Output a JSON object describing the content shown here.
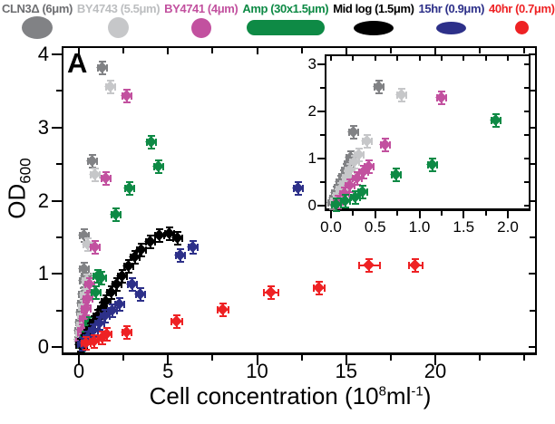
{
  "panel_label": "A",
  "legend": {
    "entries": [
      {
        "label": "CLN3Δ (6μm)",
        "color": "#6d6e71",
        "marker_color": "#818285",
        "marker": "ellipse",
        "marker_w": 34,
        "marker_h": 25
      },
      {
        "label": "BY4743 (5.5μm)",
        "color": "#bcbec0",
        "marker_color": "#c6c7c9",
        "marker": "ellipse",
        "marker_w": 23,
        "marker_h": 23
      },
      {
        "label": "BY4741 (4μm)",
        "color": "#c2519f",
        "marker_color": "#c2519f",
        "marker": "circle",
        "marker_w": 22,
        "marker_h": 22
      },
      {
        "label": "Amp (30x1.5μm)",
        "color": "#0e8a45",
        "marker_color": "#0e8a45",
        "marker": "rod",
        "marker_w": 86,
        "marker_h": 17
      },
      {
        "label": "Mid log (1.5μm)",
        "color": "#000000",
        "marker_color": "#000000",
        "marker": "ellipse",
        "marker_w": 44,
        "marker_h": 16
      },
      {
        "label": "15hr (0.9μm)",
        "color": "#2d3089",
        "marker_color": "#2d3089",
        "marker": "ellipse",
        "marker_w": 33,
        "marker_h": 14
      },
      {
        "label": "40hr (0.7μm)",
        "color": "#ee2224",
        "marker_color": "#ee2224",
        "marker": "circle",
        "marker_w": 15,
        "marker_h": 15
      }
    ]
  },
  "axes": {
    "x_title": {
      "prefix": "Cell concentration (10",
      "sup": "8",
      "mid": "ml",
      "sup2": "-1",
      "suffix": ")"
    },
    "y_title": {
      "main": "OD",
      "sub": "600"
    }
  },
  "chart_data": [
    {
      "type": "scatter",
      "name": "main-plot",
      "xlabel": "Cell concentration (10^8 ml^-1)",
      "ylabel": "OD600",
      "xlim": [
        -1,
        25.7
      ],
      "ylim": [
        -0.11,
        4.05
      ],
      "grid": false,
      "x_ticks": {
        "major": [
          0,
          5,
          10,
          15,
          20
        ],
        "labels": [
          "0",
          "5",
          "10",
          "15",
          "20"
        ],
        "minor": [
          2.5,
          7.5,
          12.5,
          17.5,
          22.5,
          25
        ]
      },
      "y_ticks": {
        "major": [
          0,
          1,
          2,
          3,
          4
        ],
        "labels": [
          "0",
          "1",
          "2",
          "3",
          "4"
        ],
        "minor": [
          0.5,
          1.5,
          2.5,
          3.5
        ]
      },
      "series": [
        {
          "name": "CLN3Δ (6μm)",
          "color": "#818285",
          "points": [
            [
              0.03,
              0.1
            ],
            [
              0.06,
              0.22
            ],
            [
              0.09,
              0.33
            ],
            [
              0.13,
              0.47
            ],
            [
              0.18,
              0.6
            ],
            [
              0.24,
              0.72
            ],
            [
              0.3,
              0.9
            ],
            [
              0.31,
              1.07
            ],
            [
              0.41,
              0.97
            ],
            [
              0.33,
              1.52
            ],
            [
              0.76,
              2.54
            ],
            [
              1.3,
              3.82
            ]
          ]
        },
        {
          "name": "BY4743 (5.5μm)",
          "color": "#c6c7c9",
          "points": [
            [
              0.05,
              0.08
            ],
            [
              0.09,
              0.18
            ],
            [
              0.14,
              0.3
            ],
            [
              0.19,
              0.42
            ],
            [
              0.26,
              0.55
            ],
            [
              0.34,
              0.7
            ],
            [
              0.45,
              0.9
            ],
            [
              0.5,
              1.4
            ],
            [
              0.92,
              2.35
            ],
            [
              1.8,
              3.56
            ]
          ]
        },
        {
          "name": "BY4741 (4μm)",
          "color": "#c2519f",
          "points": [
            [
              0.1,
              0.08
            ],
            [
              0.2,
              0.22
            ],
            [
              0.3,
              0.38
            ],
            [
              0.4,
              0.52
            ],
            [
              0.5,
              0.66
            ],
            [
              0.62,
              0.85
            ],
            [
              0.9,
              1.36
            ],
            [
              1.53,
              2.3
            ],
            [
              2.7,
              3.43
            ]
          ]
        },
        {
          "name": "Amp (30x1.5μm)",
          "color": "#0e8a45",
          "points": [
            [
              0.15,
              0.03
            ],
            [
              0.38,
              0.13
            ],
            [
              0.62,
              0.32
            ],
            [
              0.97,
              0.74
            ],
            [
              1.07,
              0.97
            ],
            [
              1.27,
              0.94
            ],
            [
              2.09,
              1.81
            ],
            [
              2.87,
              2.17
            ],
            [
              4.07,
              2.8
            ],
            [
              4.48,
              2.46
            ]
          ]
        },
        {
          "name": "Mid log (1.5μm)",
          "color": "#000000",
          "points": [
            [
              0.1,
              0.02
            ],
            [
              0.28,
              0.08
            ],
            [
              0.45,
              0.15
            ],
            [
              0.65,
              0.24
            ],
            [
              0.85,
              0.33
            ],
            [
              1.05,
              0.42
            ],
            [
              1.3,
              0.52
            ],
            [
              1.55,
              0.62
            ],
            [
              1.85,
              0.74
            ],
            [
              2.15,
              0.85
            ],
            [
              2.45,
              0.97
            ],
            [
              2.8,
              1.1
            ],
            [
              3.15,
              1.22
            ],
            [
              3.5,
              1.33
            ],
            [
              4.0,
              1.44
            ],
            [
              4.55,
              1.52
            ],
            [
              5.1,
              1.55
            ],
            [
              5.55,
              1.48
            ]
          ]
        },
        {
          "name": "15hr (0.9μm)",
          "color": "#2d3089",
          "points": [
            [
              0.2,
              0.04
            ],
            [
              0.5,
              0.13
            ],
            [
              0.8,
              0.22
            ],
            [
              1.15,
              0.32
            ],
            [
              1.5,
              0.42
            ],
            [
              1.9,
              0.5
            ],
            [
              2.3,
              0.58
            ],
            [
              3.0,
              0.85
            ],
            [
              3.45,
              0.72
            ],
            [
              5.7,
              1.25
            ],
            [
              6.4,
              1.36
            ],
            [
              12.3,
              2.17
            ]
          ]
        },
        {
          "name": "40hr (0.7μm)",
          "color": "#ee2224",
          "points": [
            [
              0.4,
              0.05
            ],
            [
              0.85,
              0.08
            ],
            [
              1.3,
              0.12
            ],
            [
              1.6,
              0.17
            ],
            [
              2.7,
              0.2
            ],
            [
              5.5,
              0.35,
              0.35
            ],
            [
              8.1,
              0.51,
              0.35
            ],
            [
              10.8,
              0.74,
              0.45
            ],
            [
              13.5,
              0.8,
              0.35
            ],
            [
              16.3,
              1.11,
              0.65
            ],
            [
              18.9,
              1.11,
              0.45
            ]
          ]
        }
      ]
    },
    {
      "type": "scatter",
      "name": "inset-plot",
      "xlabel": "Cell concentration (10^8 ml^-1)",
      "ylabel": "OD600",
      "xlim": [
        -0.07,
        2.26
      ],
      "ylim": [
        -0.12,
        3.2
      ],
      "grid": false,
      "x_ticks": {
        "major": [
          0,
          0.5,
          1,
          1.5,
          2
        ],
        "labels": [
          "0.0",
          "0.5",
          "1.0",
          "1.5",
          "2.0"
        ],
        "minor": [
          0.25,
          0.75,
          1.25,
          1.75,
          2.25
        ]
      },
      "y_ticks": {
        "major": [
          0,
          1,
          2,
          3
        ],
        "labels": [
          "0",
          "1",
          "2",
          "3"
        ],
        "minor": [
          0.5,
          1.5,
          2.5
        ]
      },
      "series": [
        {
          "name": "CLN3Δ (6μm)",
          "color": "#818285",
          "points": [
            [
              0.02,
              0.06
            ],
            [
              0.04,
              0.16
            ],
            [
              0.06,
              0.27
            ],
            [
              0.09,
              0.38
            ],
            [
              0.11,
              0.5
            ],
            [
              0.14,
              0.62
            ],
            [
              0.17,
              0.75
            ],
            [
              0.2,
              0.88
            ],
            [
              0.23,
              1.02
            ],
            [
              0.26,
              1.55
            ],
            [
              0.54,
              2.52
            ]
          ]
        },
        {
          "name": "BY4743 (5.5μm)",
          "color": "#c6c7c9",
          "points": [
            [
              0.05,
              0.1
            ],
            [
              0.08,
              0.22
            ],
            [
              0.11,
              0.34
            ],
            [
              0.15,
              0.47
            ],
            [
              0.18,
              0.6
            ],
            [
              0.22,
              0.75
            ],
            [
              0.27,
              0.92
            ],
            [
              0.32,
              1.08
            ],
            [
              0.41,
              1.36
            ],
            [
              0.8,
              2.35
            ]
          ]
        },
        {
          "name": "BY4741 (4μm)",
          "color": "#c2519f",
          "points": [
            [
              0.08,
              0.08
            ],
            [
              0.15,
              0.25
            ],
            [
              0.22,
              0.42
            ],
            [
              0.3,
              0.58
            ],
            [
              0.37,
              0.72
            ],
            [
              0.43,
              0.83
            ],
            [
              0.62,
              1.29
            ],
            [
              1.25,
              2.28
            ]
          ]
        },
        {
          "name": "Amp (30x1.5μm)",
          "color": "#0e8a45",
          "points": [
            [
              0.06,
              0.02
            ],
            [
              0.16,
              0.09
            ],
            [
              0.28,
              0.18
            ],
            [
              0.36,
              0.28
            ],
            [
              0.74,
              0.65
            ],
            [
              1.15,
              0.87
            ],
            [
              1.87,
              1.8
            ]
          ]
        }
      ]
    }
  ]
}
